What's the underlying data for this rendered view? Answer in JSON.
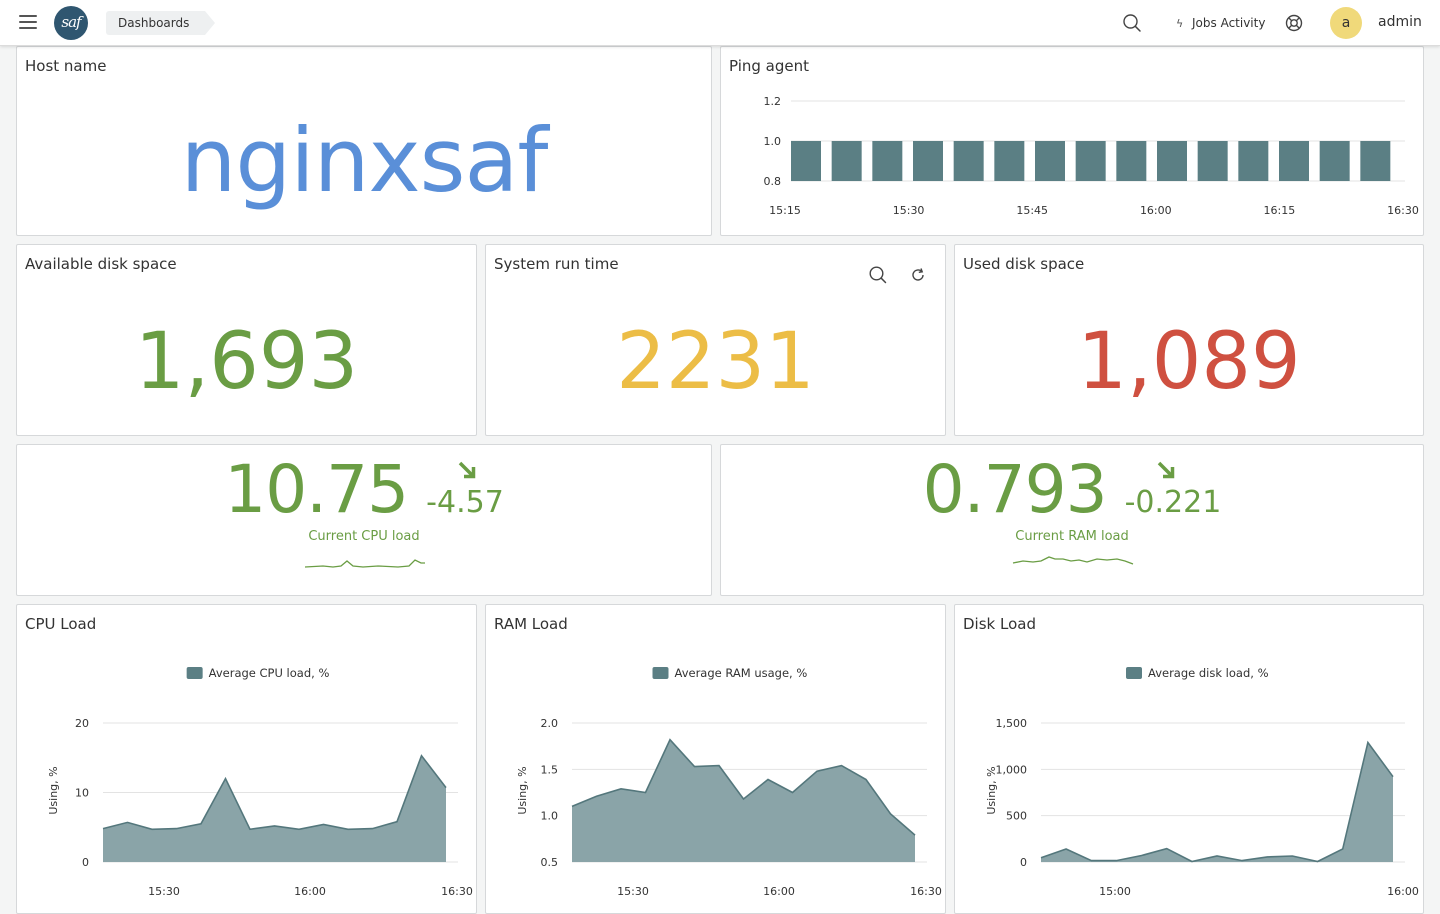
{
  "topbar": {
    "breadcrumb": "Dashboards",
    "jobs_label": "Jobs Activity",
    "avatar_letter": "a",
    "username": "admin"
  },
  "host_panel": {
    "title": "Host name",
    "value": "nginxsaf",
    "color": "#5a8fd8"
  },
  "ping_panel": {
    "title": "Ping agent",
    "chart_data": {
      "type": "bar",
      "x_ticks": [
        "15:15",
        "15:30",
        "15:45",
        "16:00",
        "16:15",
        "16:30"
      ],
      "y_ticks": [
        "1.2",
        "1.0",
        "0.8"
      ],
      "ylim": [
        0.8,
        1.2
      ],
      "values": [
        1,
        1,
        1,
        1,
        1,
        1,
        1,
        1,
        1,
        1,
        1,
        1,
        1,
        1,
        1
      ],
      "color": "#5b7f84"
    }
  },
  "disk_avail": {
    "title": "Available disk space",
    "value": "1,693",
    "color": "#6a9d44"
  },
  "runtime": {
    "title": "System run time",
    "value": "2231",
    "color": "#ecbd46"
  },
  "disk_used": {
    "title": "Used disk space",
    "value": "1,089",
    "color": "#cf5040"
  },
  "cpu_stat": {
    "value": "10.75",
    "delta": "-4.57",
    "label": "Current CPU load",
    "color": "#6a9d44"
  },
  "ram_stat": {
    "value": "0.793",
    "delta": "-0.221",
    "label": "Current RAM load",
    "color": "#6a9d44"
  },
  "chart_data": [
    {
      "title": "CPU Load",
      "type": "area",
      "legend": "Average CPU load, %",
      "ylabel": "Using, %",
      "y_ticks": [
        "20",
        "10",
        "0"
      ],
      "y_tick_values": [
        20,
        10,
        0
      ],
      "ylim": [
        0,
        20
      ],
      "x_ticks": [
        "15:30",
        "16:00",
        "16:30"
      ],
      "values": [
        4.8,
        5.7,
        4.7,
        4.8,
        5.5,
        12,
        4.7,
        5.2,
        4.7,
        5.4,
        4.7,
        4.8,
        5.8,
        15.3,
        10.7
      ]
    },
    {
      "title": "RAM Load",
      "type": "area",
      "legend": "Average RAM usage, %",
      "ylabel": "Using, %",
      "y_ticks": [
        "2.0",
        "1.5",
        "1.0",
        "0.5"
      ],
      "y_tick_values": [
        2.0,
        1.5,
        1.0,
        0.5
      ],
      "ylim": [
        0.5,
        2.0
      ],
      "x_ticks": [
        "15:30",
        "16:00",
        "16:30"
      ],
      "values": [
        1.1,
        1.21,
        1.29,
        1.25,
        1.82,
        1.53,
        1.54,
        1.18,
        1.39,
        1.25,
        1.48,
        1.54,
        1.39,
        1.02,
        0.79
      ]
    },
    {
      "title": "Disk Load",
      "type": "area",
      "legend": "Average disk load, %",
      "ylabel": "Using, %",
      "y_ticks": [
        "1,500",
        "1,000",
        "500",
        "0"
      ],
      "y_tick_values": [
        1500,
        1000,
        500,
        0
      ],
      "ylim": [
        0,
        1500
      ],
      "x_ticks": [
        "15:00",
        "16:00"
      ],
      "values": [
        45,
        140,
        15,
        15,
        70,
        145,
        5,
        65,
        15,
        55,
        65,
        5,
        140,
        1290,
        920
      ]
    }
  ]
}
